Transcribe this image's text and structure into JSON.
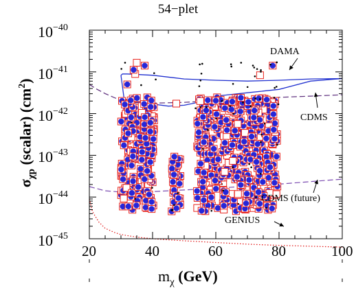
{
  "chart_data": {
    "type": "scatter",
    "title": "54−plet",
    "xlabel": "mχ (GeV)",
    "ylabel": "σχp (scalar) (cm2)",
    "xlim": [
      20,
      100
    ],
    "ylim_log10": [
      -45,
      -40
    ],
    "x_ticks": [
      "20",
      "40",
      "60",
      "80",
      "100"
    ],
    "y_tick_base": "10",
    "y_tick_exponents": [
      "−40",
      "−41",
      "−42",
      "−43",
      "−44",
      "−45"
    ],
    "annotations": [
      "DAMA",
      "CDMS",
      "CDMS (future)",
      "GENIUS"
    ],
    "curves": [
      {
        "name": "DAMA",
        "style": "solid",
        "color": "#1f2fcf",
        "x": [
          30,
          30.5,
          32,
          40,
          50,
          60,
          70,
          80,
          90,
          100,
          90,
          80,
          70,
          60,
          55,
          50,
          45,
          40,
          35,
          31,
          30
        ],
        "log10y": [
          -41.08,
          -41.05,
          -41.05,
          -41.08,
          -41.17,
          -41.2,
          -41.22,
          -41.2,
          -41.17,
          -41.16,
          -41.22,
          -41.42,
          -41.5,
          -41.58,
          -41.72,
          -41.8,
          -41.82,
          -41.77,
          -41.72,
          -41.65,
          -41.08
        ]
      },
      {
        "name": "CDMS",
        "style": "dashed",
        "color": "#5a2a7a",
        "x": [
          20,
          22,
          25,
          28,
          30,
          35,
          40,
          50,
          60,
          70,
          80,
          90,
          100
        ],
        "log10y": [
          -41.3,
          -41.4,
          -41.52,
          -41.62,
          -41.68,
          -41.74,
          -41.75,
          -41.73,
          -41.69,
          -41.65,
          -41.61,
          -41.58,
          -41.55
        ]
      },
      {
        "name": "CDMS (future)",
        "style": "dashed",
        "color": "#7a4ab0",
        "x": [
          20,
          25,
          30,
          40,
          50,
          60,
          70,
          80,
          90,
          100
        ],
        "log10y": [
          -43.75,
          -43.85,
          -43.88,
          -43.87,
          -43.83,
          -43.79,
          -43.74,
          -43.69,
          -43.63,
          -43.57
        ]
      },
      {
        "name": "GENIUS",
        "style": "dotted",
        "color": "#e01010",
        "x": [
          20,
          21,
          23,
          25,
          28,
          30,
          35,
          40,
          50,
          60,
          70,
          80,
          90,
          100
        ],
        "log10y": [
          -44.05,
          -44.35,
          -44.6,
          -44.75,
          -44.85,
          -44.9,
          -44.96,
          -45.0,
          -45.05,
          -45.09,
          -45.13,
          -45.16,
          -45.18,
          -45.2
        ]
      }
    ],
    "scatter_clusters": [
      {
        "x_range": [
          30,
          40.5
        ],
        "log10y_range": [
          -44.35,
          -41.6
        ],
        "count": 230
      },
      {
        "x_range": [
          46,
          49
        ],
        "log10y_range": [
          -44.35,
          -42.9
        ],
        "count": 45
      },
      {
        "x_range": [
          54,
          79.5
        ],
        "log10y_range": [
          -44.35,
          -41.6
        ],
        "count": 520
      }
    ],
    "outlier_points": [
      {
        "x": 31.3,
        "log10y": -40.78
      },
      {
        "x": 35.0,
        "log10y": -40.78
      },
      {
        "x": 37.5,
        "log10y": -40.85
      },
      {
        "x": 40.5,
        "log10y": -41.03
      },
      {
        "x": 34.5,
        "log10y": -41.05
      },
      {
        "x": 34.0,
        "log10y": -40.95
      },
      {
        "x": 68.0,
        "log10y": -40.78
      },
      {
        "x": 74.0,
        "log10y": -41.08
      },
      {
        "x": 78.0,
        "log10y": -40.85
      },
      {
        "x": 79.3,
        "log10y": -40.77
      },
      {
        "x": 47.5,
        "log10y": -41.76
      },
      {
        "x": 32.0,
        "log10y": -41.3
      }
    ],
    "series": [
      {
        "marker": "open-square",
        "color": "#e8231c"
      },
      {
        "marker": "filled-circle",
        "color": "#2626d9"
      },
      {
        "marker": "dot",
        "color": "#000000"
      }
    ]
  }
}
